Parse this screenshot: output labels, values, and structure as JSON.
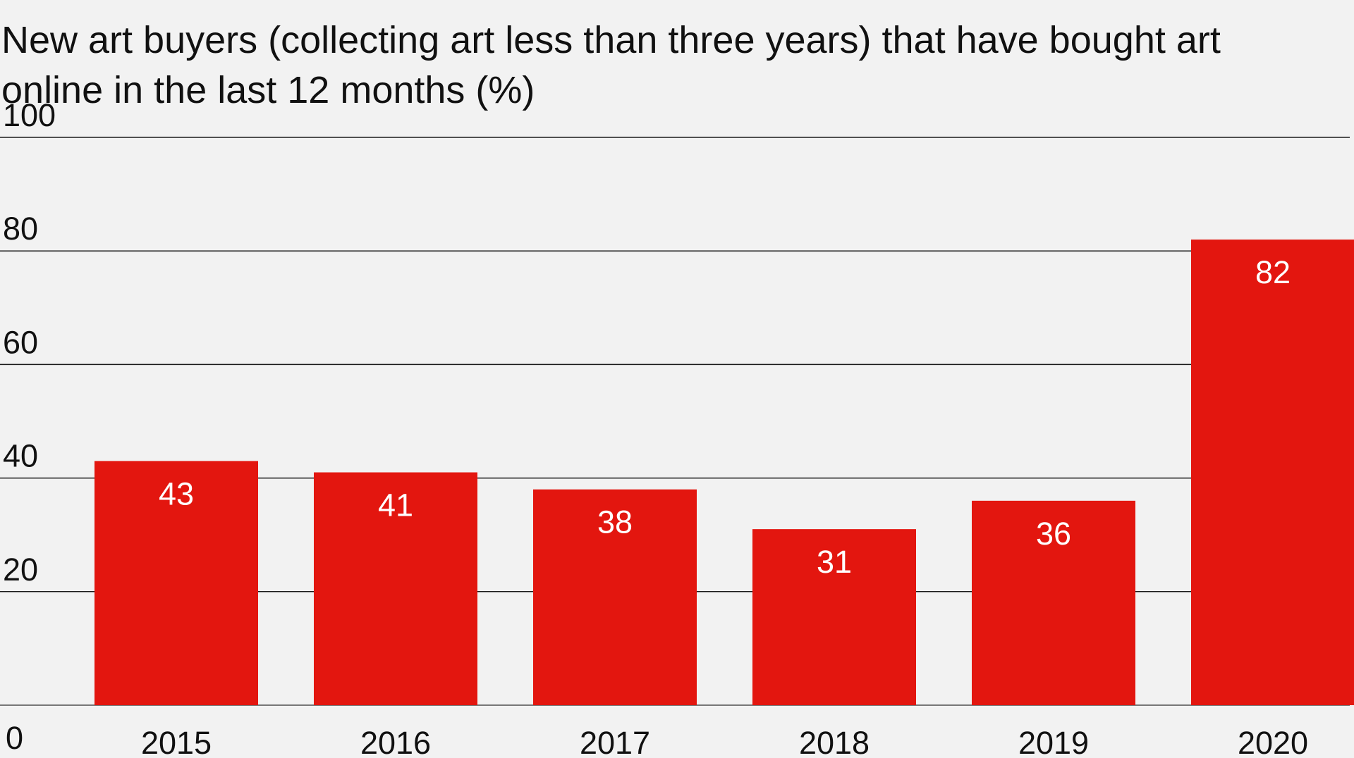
{
  "chart_data": {
    "type": "bar",
    "title": "New art buyers (collecting art less than three years) that have bought art online in the last 12 months (%)",
    "categories": [
      "2015",
      "2016",
      "2017",
      "2018",
      "2019",
      "2020"
    ],
    "values": [
      43,
      41,
      38,
      31,
      36,
      82
    ],
    "data_labels": [
      "43",
      "41",
      "38",
      "31",
      "36",
      "82"
    ],
    "y_ticks": [
      "0",
      "20",
      "40",
      "60",
      "80",
      "100"
    ],
    "ylim": [
      0,
      100
    ],
    "grid": true,
    "bar_color": "#e3160f",
    "grid_color": "#1a1a1a",
    "label_color": "#ffffff"
  }
}
